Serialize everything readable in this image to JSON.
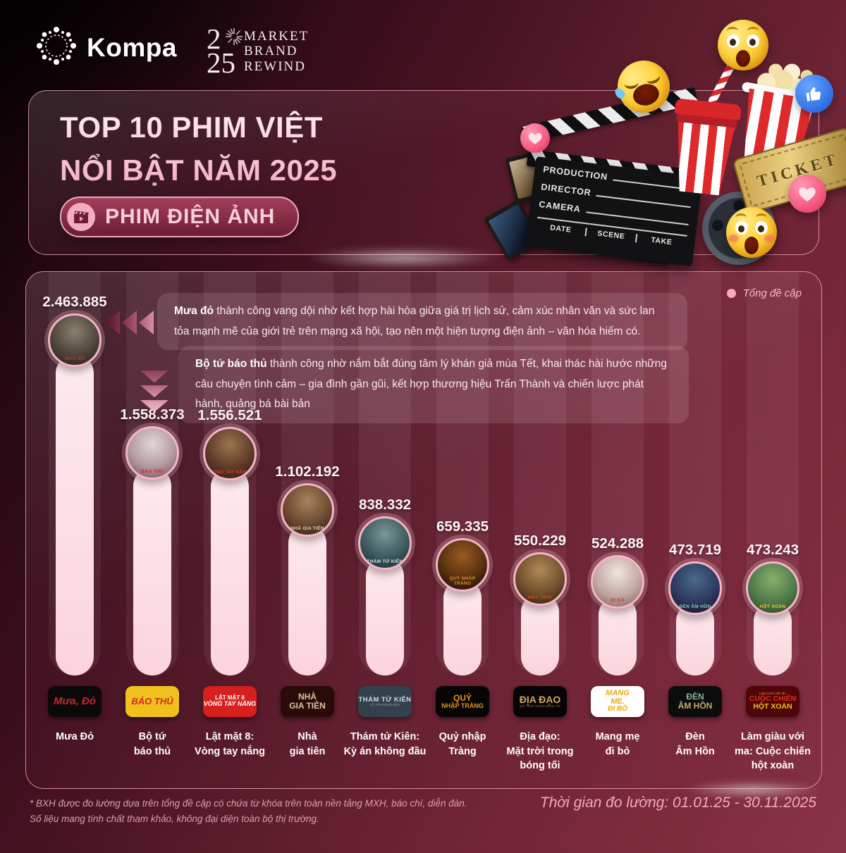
{
  "header": {
    "brand": "Kompa",
    "event": {
      "digits_top": "2",
      "digits_bottom": "25",
      "words": [
        "MARKET",
        "BRAND",
        "REWIND"
      ]
    }
  },
  "title": {
    "line1": "TOP 10 PHIM VIỆT",
    "line2": "NỔI BẬT NĂM 2025",
    "badge": "PHIM ĐIỆN ẢNH"
  },
  "legend": {
    "label": "Tổng đề cập",
    "dot_color": "#f9a9ba"
  },
  "annotations": [
    {
      "lead": "Mưa đỏ",
      "text": " thành công vang dội nhờ kết hợp hài hòa giữa giá trị lịch sử, cảm xúc nhân văn và sức lan tỏa mạnh mẽ của giới trẻ trên mạng xã hội, tạo nên một hiện tượng điện ảnh – văn hóa hiếm có."
    },
    {
      "lead": "Bộ tứ báo thủ",
      "text": " thành công nhờ nắm bắt đúng tâm lý khán giả mùa Tết, khai thác hài hước những câu chuyện tình cảm – gia đình gần gũi, kết hợp thương hiệu Trấn Thành và chiến lược phát hành, quảng bá bài bản"
    }
  ],
  "chart_data": {
    "type": "bar",
    "title": "TOP 10 PHIM VIỆT NỔI BẬT NĂM 2025 — PHIM ĐIỆN ẢNH",
    "series_label": "Tổng đề cập",
    "categories": [
      "Mưa Đỏ",
      "Bộ tứ báo thủ",
      "Lật mặt 8: Vòng tay nắng",
      "Nhà gia tiên",
      "Thám tử Kiên: Kỳ án không đầu",
      "Quỷ nhập Tràng",
      "Địa đạo: Mặt trời trong bóng tối",
      "Mang mẹ đi bỏ",
      "Đèn Âm Hồn",
      "Làm giàu với ma: Cuộc chiến hột xoàn"
    ],
    "values": [
      2463885,
      1558373,
      1556521,
      1102192,
      838332,
      659335,
      550229,
      524288,
      473719,
      473243
    ],
    "value_labels": [
      "2.463.885",
      "1.558.373",
      "1.556.521",
      "1.102.192",
      "838.332",
      "659.335",
      "550.229",
      "524.288",
      "473.719",
      "473.243"
    ],
    "bar_color": "#fbd5dc",
    "legend_position": "top-right",
    "grid": false
  },
  "films": [
    {
      "label": "Mưa Đỏ",
      "poster": {
        "colors": [
          "#8a7f70",
          "#4f463c",
          "#1f1a17"
        ],
        "text": "MƯA ĐỎ",
        "text_color": "#c5322e"
      },
      "badge": {
        "bg": "#0c0909",
        "lines": [
          {
            "t": "Mưa, Đỏ",
            "c": "#c5292e",
            "s": 15,
            "b": true,
            "i": true
          }
        ]
      }
    },
    {
      "label": "Bộ tứ\nbáo thủ",
      "poster": {
        "colors": [
          "#e3d6d4",
          "#b39aa0",
          "#6f4a55"
        ],
        "text": "BÁO THỦ",
        "text_color": "#d02c24"
      },
      "badge": {
        "bg": "#f0c11d",
        "lines": [
          {
            "t": "BÁO THỦ",
            "c": "#d4281e",
            "s": 13,
            "b": true,
            "i": true
          }
        ]
      }
    },
    {
      "label": "Lật mặt 8:\nVòng tay nắng",
      "poster": {
        "colors": [
          "#9c7450",
          "#5e3c28",
          "#2a1810"
        ],
        "text": "VÒNG TAY NẮNG",
        "text_color": "#e0392e"
      },
      "badge": {
        "bg": "#d6201e",
        "lines": [
          {
            "t": "LẬT MẶT 8",
            "c": "#ffffff",
            "s": 8,
            "b": true
          },
          {
            "t": "VÒNG TAY NẮNG",
            "c": "#ffffff",
            "s": 9,
            "b": true,
            "i": true
          }
        ]
      }
    },
    {
      "label": "Nhà\ngia tiên",
      "poster": {
        "colors": [
          "#a8825c",
          "#6b4a30",
          "#2e1c10"
        ],
        "text": "NHÀ GIA TIÊN",
        "text_color": "#e8d8b0"
      },
      "badge": {
        "bg": "#2b0a0a",
        "lines": [
          {
            "t": "NHÀ",
            "c": "#d8c49c",
            "s": 12,
            "b": true
          },
          {
            "t": "GIA TIÊN",
            "c": "#d8c49c",
            "s": 12,
            "b": true
          }
        ]
      }
    },
    {
      "label": "Thám tử Kiên:\nKỳ án không đầu",
      "poster": {
        "colors": [
          "#7a9897",
          "#3c5a60",
          "#142630"
        ],
        "text": "THÁM TỬ KIÊN",
        "text_color": "#cfe0df"
      },
      "badge": {
        "bg": "#32414d",
        "lines": [
          {
            "t": "THÁM TỬ KIÊN",
            "c": "#d2dcdf",
            "s": 9.5,
            "b": true,
            "ls": 0.5
          },
          {
            "t": "KỲ ÁN KHÔNG ĐẦU",
            "c": "#8fa3ab",
            "s": 4.5
          }
        ]
      }
    },
    {
      "label": "Quỷ nhập\nTràng",
      "poster": {
        "colors": [
          "#9c5a20",
          "#55300f",
          "#100a08"
        ],
        "text": "QUỶ NHẬP TRÀNG",
        "text_color": "#e08a28"
      },
      "badge": {
        "bg": "#080505",
        "lines": [
          {
            "t": "QUỶ",
            "c": "#e8951e",
            "s": 12,
            "b": true
          },
          {
            "t": "NHẬP TRÀNG",
            "c": "#e8951e",
            "s": 9,
            "b": true
          }
        ]
      }
    },
    {
      "label": "Địa đạo:\nMặt trời trong\nbóng tối",
      "poster": {
        "colors": [
          "#b08a58",
          "#70502e",
          "#261706"
        ],
        "text": "MẶT TRỜI",
        "text_color": "#e04818"
      },
      "badge": {
        "bg": "#060404",
        "lines": [
          {
            "t": "ĐỊA ĐẠO",
            "c": "#cfa968",
            "s": 14,
            "b": true
          },
          {
            "t": "MẶT TRỜI TRONG BÓNG TỐI",
            "c": "#8a7448",
            "s": 4.2
          }
        ]
      }
    },
    {
      "label": "Mang mẹ\nđi bỏ",
      "poster": {
        "colors": [
          "#f0e4e0",
          "#c2a8a4",
          "#7c5a58"
        ],
        "text": "ĐI BỎ",
        "text_color": "#d43844"
      },
      "badge": {
        "bg": "#ffffff",
        "lines": [
          {
            "t": "MANG",
            "c": "#e8ab14",
            "s": 11,
            "b": true,
            "i": true
          },
          {
            "t": "ME.",
            "c": "#e8ab14",
            "s": 11,
            "b": true,
            "i": true
          },
          {
            "t": "ĐI BỎ",
            "c": "#e8ab14",
            "s": 10,
            "b": true,
            "i": true
          }
        ]
      }
    },
    {
      "label": "Đèn\nÂm Hồn",
      "poster": {
        "colors": [
          "#4a6a8a",
          "#2c3a5e",
          "#100e22"
        ],
        "text": "ĐÈN ÂM HỒN",
        "text_color": "#8ac8c0"
      },
      "badge": {
        "bg": "#0b0d0c",
        "lines": [
          {
            "t": "ĐÈN",
            "c": "#86b4a2",
            "s": 12,
            "b": true
          },
          {
            "t": "ÂM HỒN",
            "c": "#c9a96a",
            "s": 12,
            "b": true
          }
        ]
      }
    },
    {
      "label": "Làm giàu với\nma: Cuộc chiến\nhột xoàn",
      "poster": {
        "colors": [
          "#88b06a",
          "#4f7a4a",
          "#22401e"
        ],
        "text": "HỘT XOÀN",
        "text_color": "#f2c838"
      },
      "badge": {
        "bg": "#500609",
        "lines": [
          {
            "t": "LÀM GIÀU VỚI MA",
            "c": "#e89a3c",
            "s": 4.5
          },
          {
            "t": "CUỘC CHIẾN",
            "c": "#e02c20",
            "s": 10.5,
            "b": true
          },
          {
            "t": "HỘT XOÀN",
            "c": "#f2c018",
            "s": 10.5,
            "b": true
          }
        ]
      }
    }
  ],
  "decor": {
    "clapperboard": {
      "rows": [
        "PRODUCTION",
        "DIRECTOR",
        "CAMERA"
      ],
      "footer": [
        "DATE",
        "SCENE",
        "TAKE"
      ]
    },
    "ticket": {
      "label": "TICKET"
    },
    "icons": [
      "rofl-emoji",
      "astonished-emoji",
      "shocked-emoji",
      "like-icon",
      "heart-reaction-icon",
      "popcorn-icon",
      "soda-cup-icon",
      "ticket-icon",
      "clapperboard-icon",
      "film-strip-icon",
      "film-reel-icon"
    ]
  },
  "footnote": "* BXH được đo lường dựa trên tổng đề cập có chứa từ khóa trên toàn nền tảng MXH, báo chí, diễn đàn.\nSố liệu mang tính chất tham khảo, không đại diện toàn bộ thị trường.",
  "period": "Thời gian đo lường: 01.01.25 - 30.11.2025"
}
